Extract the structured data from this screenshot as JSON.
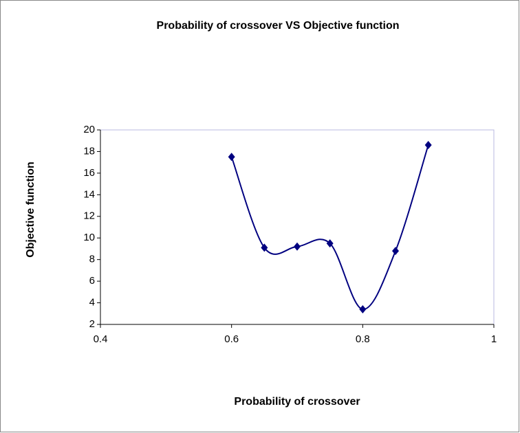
{
  "chart_data": {
    "type": "scatter",
    "title": "Probability of crossover VS Objective function",
    "x_label": "Probability of crossover",
    "y_label": "Objective function",
    "series": [
      {
        "color": "#000080",
        "x": [
          0.6,
          0.65,
          0.7,
          0.75,
          0.8,
          0.85,
          0.9
        ],
        "values": [
          17.5,
          9.1,
          9.2,
          9.5,
          3.4,
          8.8,
          18.6
        ]
      }
    ],
    "smooth": true,
    "xlim": [
      0.4,
      1
    ],
    "xticks": [
      0.4,
      0.6,
      0.8,
      1
    ],
    "ylim": [
      2,
      20
    ],
    "yticks": [
      2,
      4,
      6,
      8,
      10,
      12,
      14,
      16,
      18,
      20
    ],
    "grid": false
  }
}
